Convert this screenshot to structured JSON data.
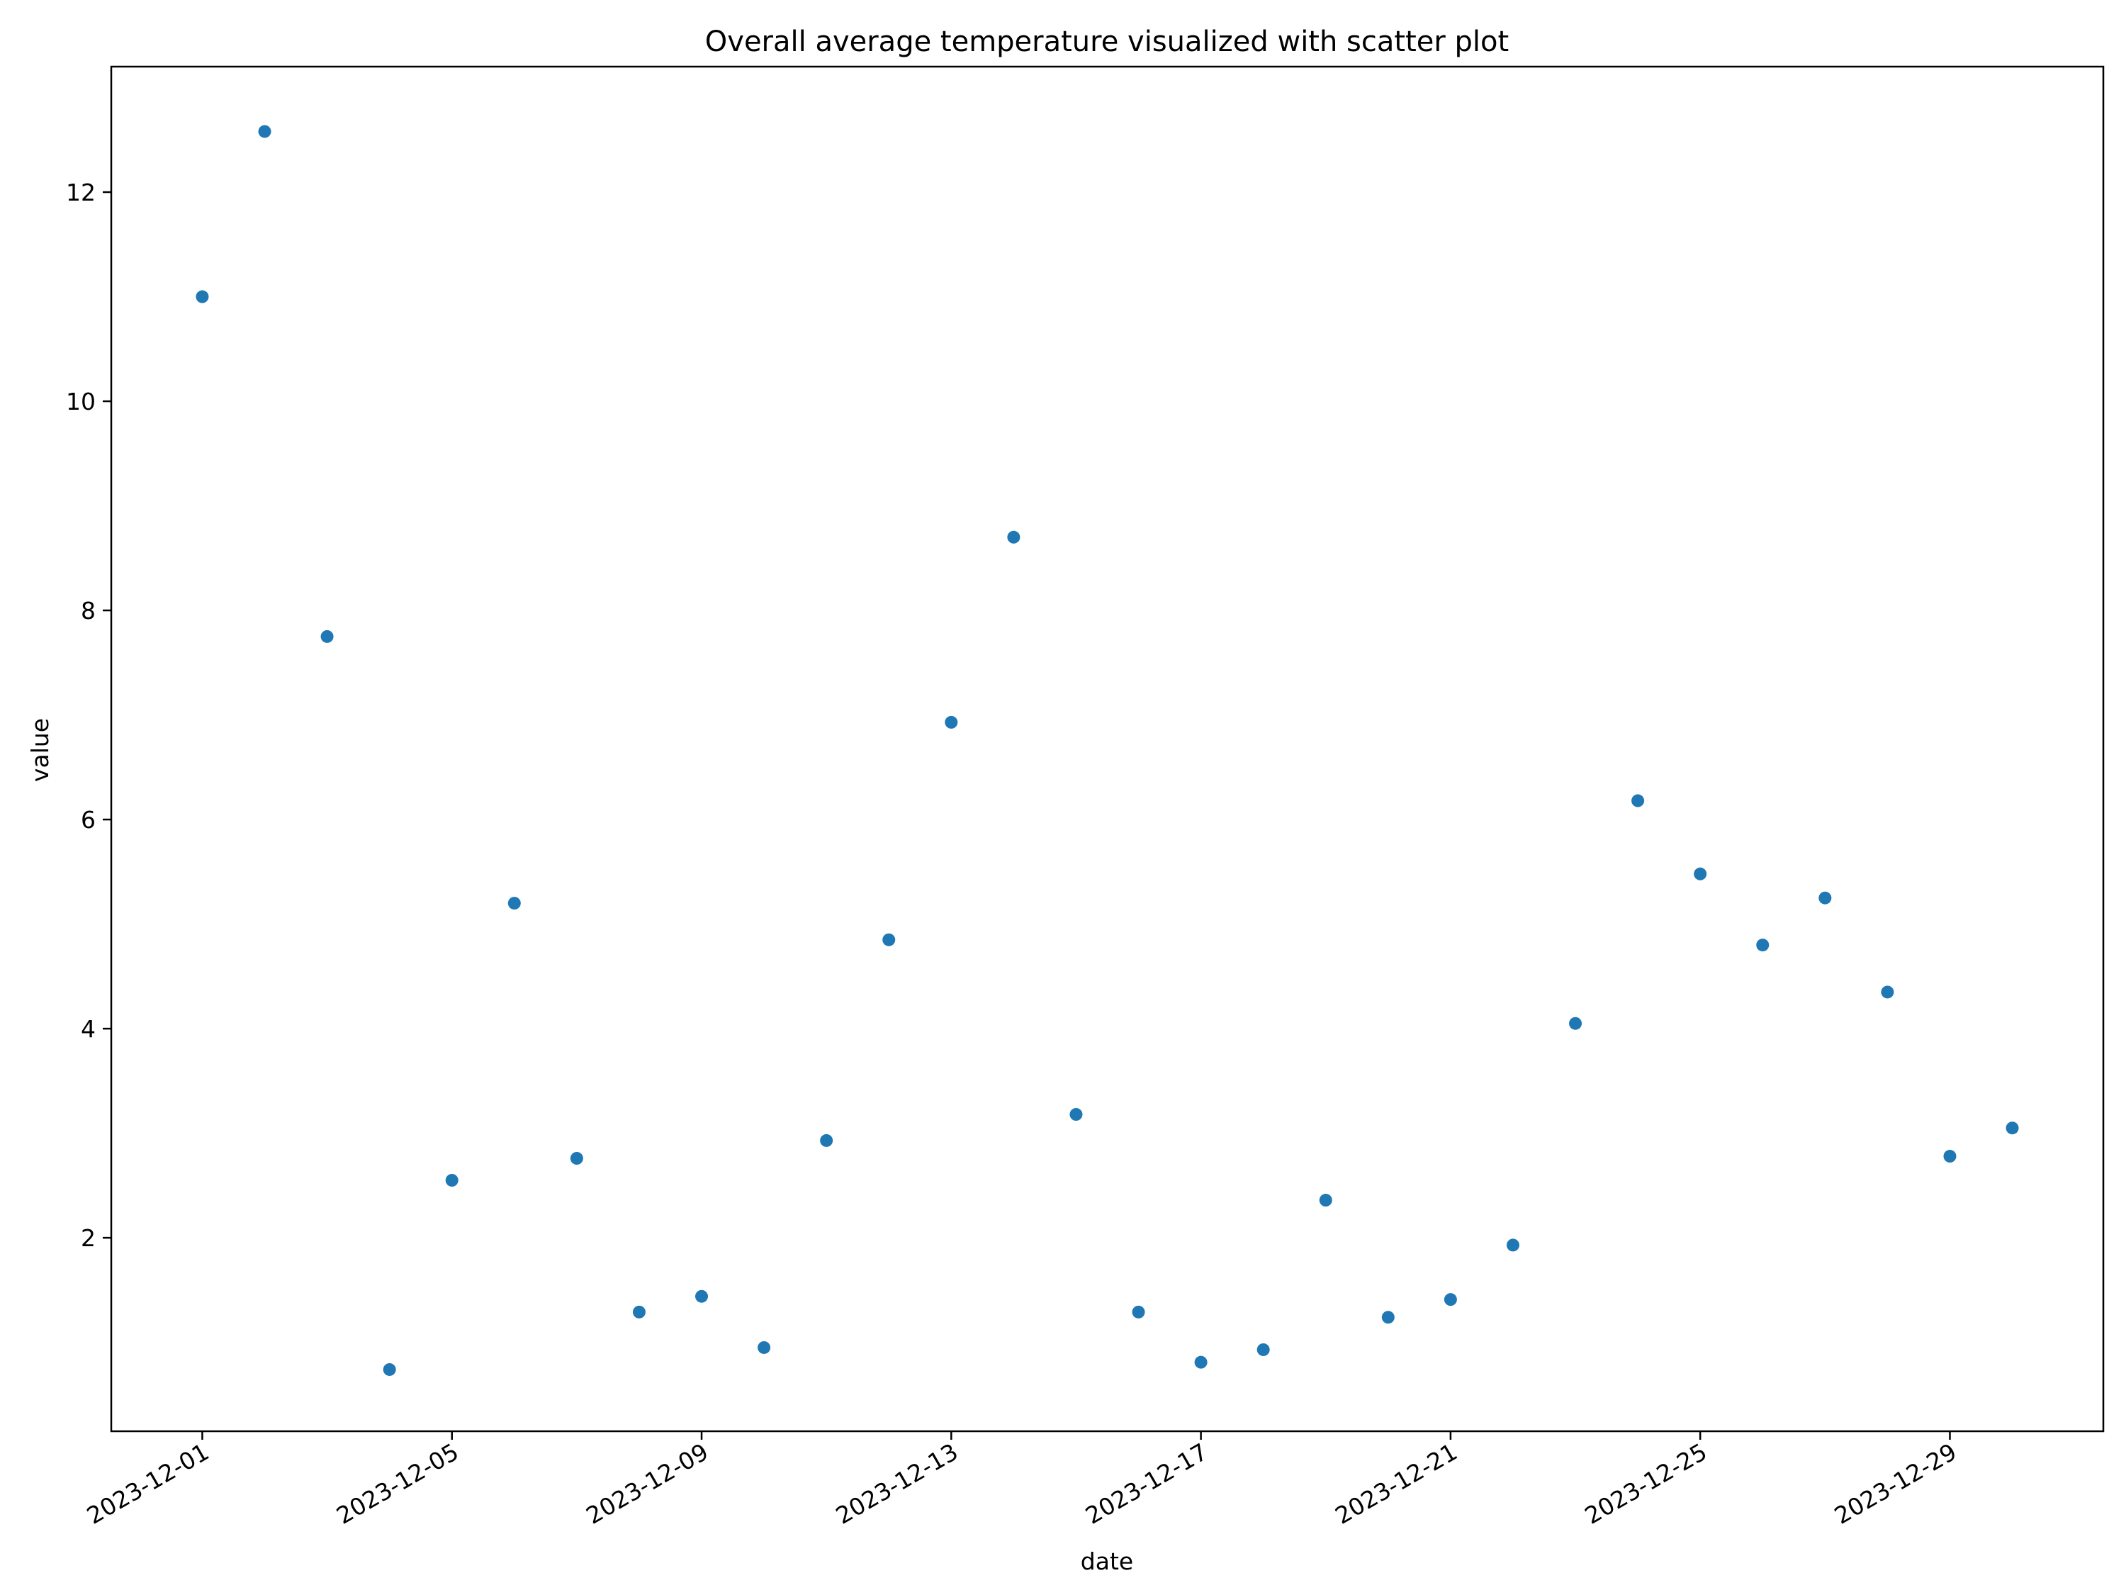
{
  "chart_data": {
    "type": "scatter",
    "title": "Overall average temperature visualized with scatter plot",
    "xlabel": "date",
    "ylabel": "value",
    "x_range": [
      "2023-11-29T13:00",
      "2023-12-31T11:00"
    ],
    "ylim": [
      0.15,
      13.2
    ],
    "grid": false,
    "legend": "none",
    "marker_color": "#1f77b4",
    "x_ticks": [
      "2023-12-01",
      "2023-12-05",
      "2023-12-09",
      "2023-12-13",
      "2023-12-17",
      "2023-12-21",
      "2023-12-25",
      "2023-12-29"
    ],
    "y_ticks": [
      2,
      4,
      6,
      8,
      10,
      12
    ],
    "points": [
      {
        "x": "2023-12-01",
        "y": 11.0
      },
      {
        "x": "2023-12-02",
        "y": 12.58
      },
      {
        "x": "2023-12-03",
        "y": 7.75
      },
      {
        "x": "2023-12-04",
        "y": 0.74
      },
      {
        "x": "2023-12-05",
        "y": 2.55
      },
      {
        "x": "2023-12-06",
        "y": 5.2
      },
      {
        "x": "2023-12-07",
        "y": 2.76
      },
      {
        "x": "2023-12-08",
        "y": 1.29
      },
      {
        "x": "2023-12-09",
        "y": 1.44
      },
      {
        "x": "2023-12-10",
        "y": 0.95
      },
      {
        "x": "2023-12-11",
        "y": 2.93
      },
      {
        "x": "2023-12-12",
        "y": 4.85
      },
      {
        "x": "2023-12-13",
        "y": 6.93
      },
      {
        "x": "2023-12-14",
        "y": 8.7
      },
      {
        "x": "2023-12-15",
        "y": 3.18
      },
      {
        "x": "2023-12-16",
        "y": 1.29
      },
      {
        "x": "2023-12-17",
        "y": 0.81
      },
      {
        "x": "2023-12-18",
        "y": 0.93
      },
      {
        "x": "2023-12-19",
        "y": 2.36
      },
      {
        "x": "2023-12-20",
        "y": 1.24
      },
      {
        "x": "2023-12-21",
        "y": 1.41
      },
      {
        "x": "2023-12-22",
        "y": 1.93
      },
      {
        "x": "2023-12-23",
        "y": 4.05
      },
      {
        "x": "2023-12-24",
        "y": 6.18
      },
      {
        "x": "2023-12-25",
        "y": 5.48
      },
      {
        "x": "2023-12-26",
        "y": 4.8
      },
      {
        "x": "2023-12-27",
        "y": 5.25
      },
      {
        "x": "2023-12-28",
        "y": 4.35
      },
      {
        "x": "2023-12-29",
        "y": 2.78
      },
      {
        "x": "2023-12-30",
        "y": 3.05
      }
    ]
  }
}
